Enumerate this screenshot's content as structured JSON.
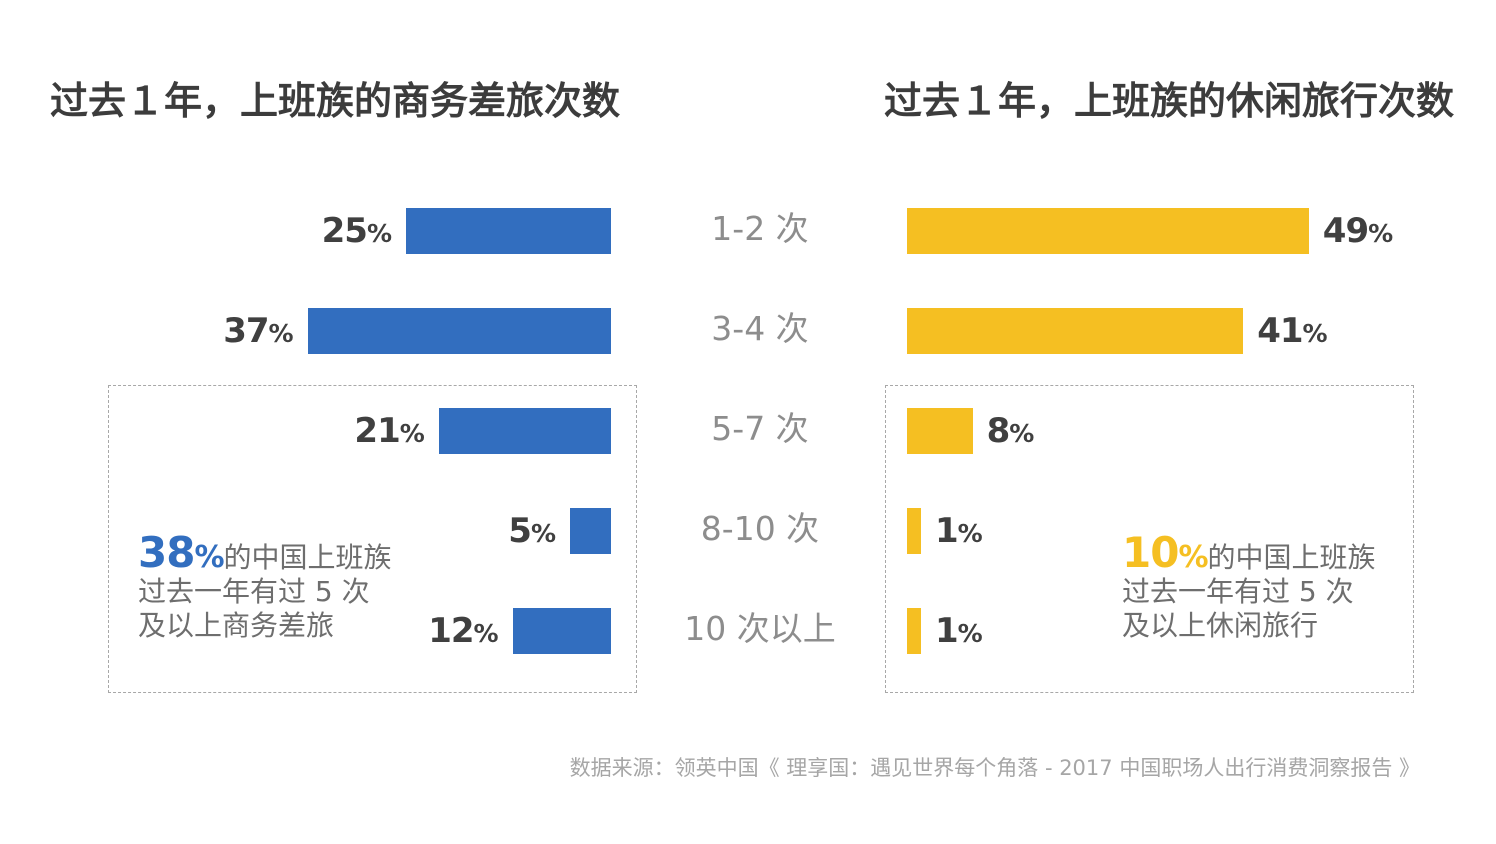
{
  "chart_data": [
    {
      "type": "bar",
      "title": "过去１年，上班族的商务差旅次数",
      "categories": [
        "1-2 次",
        "3-4 次",
        "5-7 次",
        "8-10 次",
        "10 次以上"
      ],
      "values": [
        25,
        37,
        21,
        5,
        12
      ],
      "value_suffix": "%",
      "color": "#326ebf",
      "orientation": "horizontal",
      "direction": "leftward",
      "note": {
        "value": "38%",
        "text_line1": "的中国上班族",
        "text_line2": "过去一年有过 5 次",
        "text_line3": "及以上商务差旅"
      }
    },
    {
      "type": "bar",
      "title": "过去１年，上班族的休闲旅行次数",
      "categories": [
        "1-2 次",
        "3-4 次",
        "5-7 次",
        "8-10 次",
        "10 次以上"
      ],
      "values": [
        49,
        41,
        8,
        1,
        1
      ],
      "value_suffix": "%",
      "color": "#f5bf22",
      "orientation": "horizontal",
      "direction": "rightward",
      "note": {
        "value": "10%",
        "text_line1": "的中国上班族",
        "text_line2": "过去一年有过 5 次",
        "text_line3": "及以上休闲旅行"
      }
    }
  ],
  "source": "数据来源：领英中国《 理享国：遇见世界每个角落 - 2017 中国职场人出行消费洞察报告 》"
}
